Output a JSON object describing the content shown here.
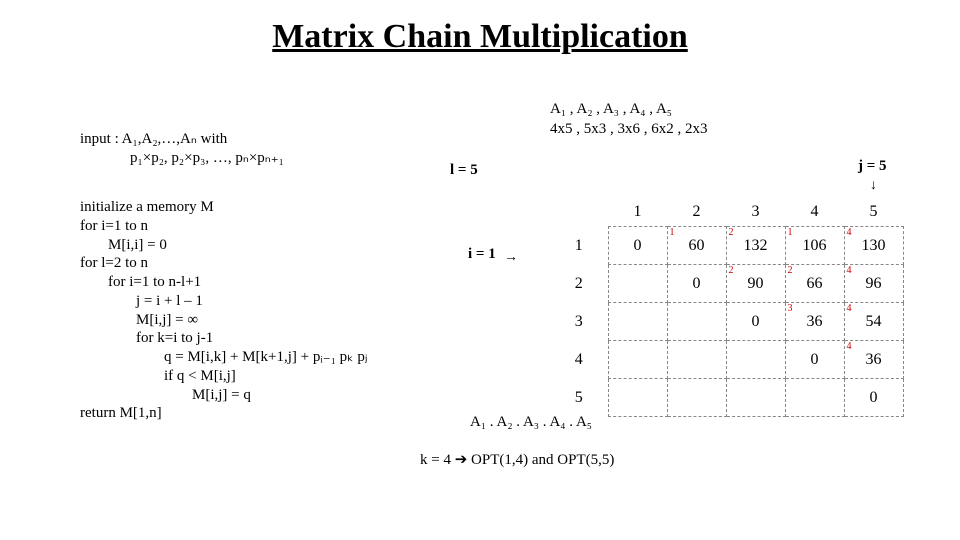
{
  "title": "Matrix Chain Multiplication",
  "input": {
    "line1": "input : A₁,A₂,…,Aₙ with",
    "line2": "p₁×p₂, p₂×p₃, …, pₙ×pₙ₊₁"
  },
  "algo": [
    {
      "t": "initialize a memory M",
      "cls": ""
    },
    {
      "t": "for i=1 to n",
      "cls": ""
    },
    {
      "t": "M[i,i] = 0",
      "cls": "ind1"
    },
    {
      "t": "for l=2 to n",
      "cls": ""
    },
    {
      "t": "for i=1 to n-l+1",
      "cls": "ind1"
    },
    {
      "t": "j = i + l – 1",
      "cls": "ind2"
    },
    {
      "t": "M[i,j] = ∞",
      "cls": "ind2"
    },
    {
      "t": "for k=i to j-1",
      "cls": "ind2"
    },
    {
      "t": "q = M[i,k] + M[k+1,j] + pᵢ₋₁ pₖ pⱼ",
      "cls": "ind3"
    },
    {
      "t": "if q < M[i,j]",
      "cls": "ind3"
    },
    {
      "t": "M[i,j] = q",
      "cls": "ind4"
    },
    {
      "t": "return M[1,n]",
      "cls": ""
    }
  ],
  "dims": {
    "row1": "A₁  ,  A₂  ,  A₃  ,  A₄  ,  A₅",
    "row2": "4x5 , 5x3 , 3x6 , 6x2 , 2x3"
  },
  "labels": {
    "l": "l = 5",
    "j": "j = 5",
    "i": "i = 1",
    "arrow_down": "↓",
    "arrow_right": "→"
  },
  "table": {
    "cols": [
      "1",
      "2",
      "3",
      "4",
      "5"
    ],
    "rows": [
      {
        "hdr": "1",
        "cells": [
          {
            "v": "0"
          },
          {
            "v": "60",
            "c": "1"
          },
          {
            "v": "132",
            "c": "2"
          },
          {
            "v": "106",
            "c": "1"
          },
          {
            "v": "130",
            "c": "4"
          }
        ]
      },
      {
        "hdr": "2",
        "cells": [
          {
            "v": ""
          },
          {
            "v": "0"
          },
          {
            "v": "90",
            "c": "2"
          },
          {
            "v": "66",
            "c": "2"
          },
          {
            "v": "96",
            "c": "4"
          }
        ]
      },
      {
        "hdr": "3",
        "cells": [
          {
            "v": ""
          },
          {
            "v": ""
          },
          {
            "v": "0"
          },
          {
            "v": "36",
            "c": "3"
          },
          {
            "v": "54",
            "c": "4"
          }
        ]
      },
      {
        "hdr": "4",
        "cells": [
          {
            "v": ""
          },
          {
            "v": ""
          },
          {
            "v": ""
          },
          {
            "v": "0"
          },
          {
            "v": "36",
            "c": "4"
          }
        ]
      },
      {
        "hdr": "5",
        "cells": [
          {
            "v": ""
          },
          {
            "v": ""
          },
          {
            "v": ""
          },
          {
            "v": ""
          },
          {
            "v": "0"
          }
        ]
      }
    ]
  },
  "chain": "A₁  .  A₂  .  A₃  .  A₄  .  A₅",
  "kline": "k = 4  ➔     OPT(1,4)  and  OPT(5,5)"
}
